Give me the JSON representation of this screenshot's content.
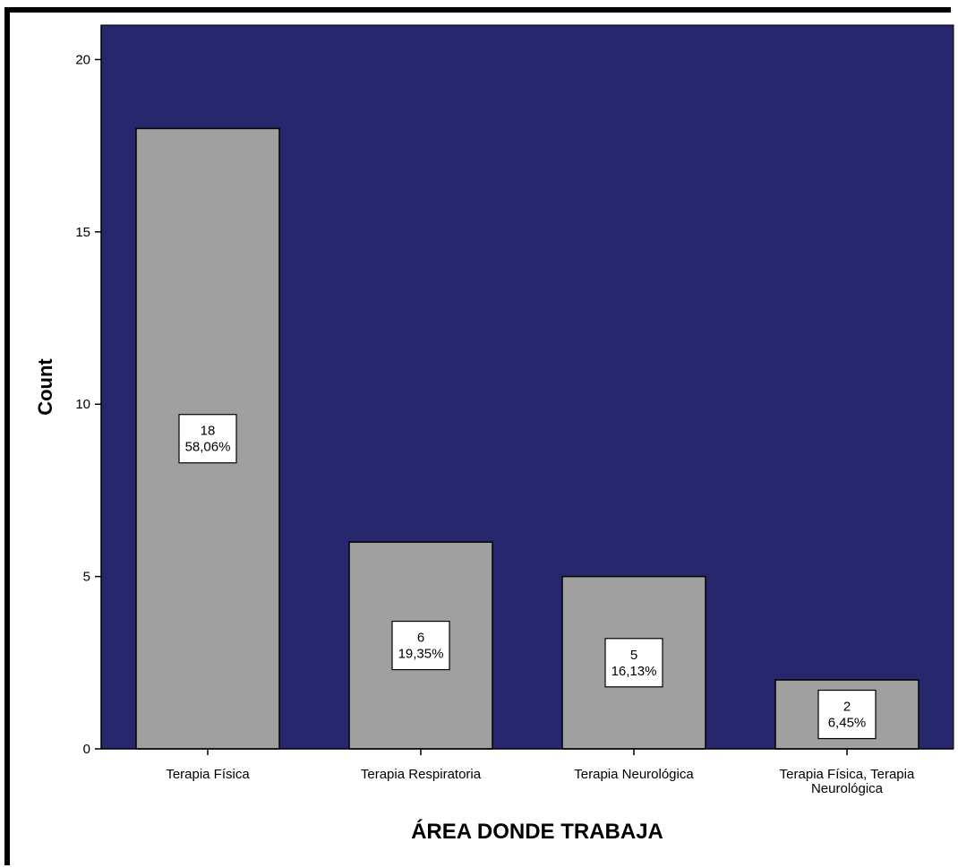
{
  "chart_data": {
    "type": "bar",
    "title": "",
    "xlabel": "ÁREA DONDE TRABAJA",
    "ylabel": "Count",
    "ylim": [
      0,
      21
    ],
    "yticks": [
      0,
      5,
      10,
      15,
      20
    ],
    "categories": [
      [
        "Terapia Física"
      ],
      [
        "Terapia Respiratoria"
      ],
      [
        "Terapia Neurológica"
      ],
      [
        "Terapia Física, Terapia",
        "Neurológica"
      ]
    ],
    "values": [
      18,
      6,
      5,
      2
    ],
    "data_labels": [
      [
        "18",
        "58,06%"
      ],
      [
        "6",
        "19,35%"
      ],
      [
        "5",
        "16,13%"
      ],
      [
        "2",
        "6,45%"
      ]
    ],
    "grid": false,
    "legend": "none"
  },
  "colors": {
    "plot_background": "#27276e",
    "bar_fill": "#a0a0a0",
    "bar_stroke": "#000000",
    "label_box": "#ffffff"
  }
}
